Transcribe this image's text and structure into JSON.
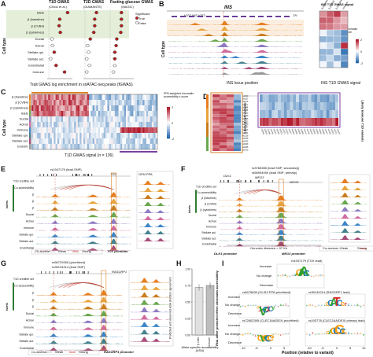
{
  "panels": {
    "A": {
      "label": "A",
      "col1_title": "T1D GWAS",
      "col1_sub": "(Chiou et al.)",
      "col2_title": "T2D GWAS",
      "col2_sub": "(DIAMANTE)",
      "col3_title": "Fasting glucose GWAS",
      "col3_sub": "(MAGIC)",
      "ylabel": "Cell type",
      "xlabel": "Trait GWAS log enrichment in snATAC-seq peaks (fGWAS)",
      "legend_title": "Significant",
      "legend_true": "True",
      "legend_false": "False",
      "rows": [
        "Islets",
        "β (baseline)",
        "β (CVB4)",
        "β (cytokines)",
        "Ductal",
        "Acinar",
        "Stellate qui.",
        "Stellate act.",
        "Endothelial",
        "Immune"
      ],
      "t1d": [
        3.1,
        1.8,
        1.7,
        1.9,
        0.5,
        0.6,
        0.9,
        0.3,
        1.2,
        2.6
      ],
      "t1d_sig": [
        true,
        true,
        true,
        true,
        false,
        false,
        true,
        false,
        true,
        true
      ],
      "t2d": [
        1.3,
        1.1,
        1.1,
        1.0,
        0.6,
        0.3,
        0.4,
        0.2,
        0.5,
        0.2
      ],
      "t2d_sig": [
        true,
        true,
        true,
        true,
        true,
        false,
        false,
        false,
        false,
        false
      ],
      "fg": [
        1.7,
        1.7,
        1.7,
        1.6,
        1.0,
        0.9,
        0.7,
        0.7,
        0.7,
        0.5
      ],
      "fg_sig": [
        true,
        true,
        true,
        true,
        true,
        true,
        true,
        true,
        false,
        false
      ]
    },
    "B": {
      "label": "B",
      "gene_title": "INS",
      "track_genes": "IGF2 INS-IGF2",
      "th": "TH",
      "ylabel": "Cell type",
      "xlabel": "INS locus position",
      "heat_xlabel": "INS T1D GWAS signal",
      "heat_title": "INS T1D GWAS signal",
      "legend_title": "PPA-weighted chromatin accessibility z-score",
      "heat_cols": [
        "β (baseline)",
        "β (CVB4)",
        "β (cytokines)",
        "Immune"
      ],
      "heat_rows": [
        "β",
        "β",
        "β",
        "Ductal",
        "Acinar",
        "Immune",
        "Stellate qui.",
        "Stellate act.",
        "Endothelial"
      ],
      "legend_ticks": [
        "2",
        "0",
        "-2"
      ]
    },
    "C": {
      "label": "C",
      "ylabel": "Cell type",
      "xlabel": "T1D GWAS signal (n = 136)",
      "legend_title": "PPA-weighted chromatin accessibility z-score",
      "rows": [
        "β (baseline)",
        "β (CVB4)",
        "β (cytokines)",
        "Islets",
        "Ductal",
        "Acinar",
        "Immune",
        "Stellate qui.",
        "Stellate act.",
        "Endoth."
      ],
      "legend_ticks": [
        "2",
        "0",
        "-2"
      ]
    },
    "D": {
      "label": "D",
      "left_title": "Likely β-cell variants",
      "right_title": "Likely immune T1D variants",
      "rows": [
        "β",
        "β",
        "β",
        "Immune"
      ]
    },
    "E": {
      "label": "E",
      "snp": "rs1947179 (lead SNP)",
      "gene": "TOX",
      "promoter": "TOX promoter",
      "rows": [
        "T1D credible set",
        "Co-accessibility",
        "β",
        "β",
        "β",
        "Ductal",
        "Acinar",
        "Immune",
        "Stellate qui.",
        "Stellate act.",
        "Endothelial"
      ],
      "islets_label": "Islets",
      "track_label": "GFM PPA",
      "legend_coaccess": "Co-access.",
      "legend_weak": "Weak",
      "legend_strong": "Strong"
    },
    "F": {
      "label": "F",
      "snp1": "rs3783355 (lead SNP; secondary)",
      "snp2": "rs56994090 (lead SNP; primary)",
      "gene1": "DLK1",
      "gene2": "MEG3",
      "gene3": "MEG8",
      "rows": [
        "T1D credible set",
        "Co-accessibility",
        "β (baseline)",
        "β (CVB4)",
        "β (cytokines)",
        "Ductal",
        "Acinar",
        "Immune",
        "Stellate qui.",
        "Stellate act.",
        "Endothelial"
      ],
      "islets_label": "Islets",
      "distance": "Genomic distance = 97 Kb",
      "promoter1": "DLK1 promoter",
      "promoter2": "MEG3 promoter",
      "legend_coaccess": "Co-access.",
      "legend_weak": "Weak",
      "legend_strong": "Strong"
    },
    "G": {
      "label": "G",
      "snp1": "rs56729265 (prioritized)",
      "snp2": "rs35134214 (lead SNP)",
      "gene": "RASGRP1",
      "promoter": "RASGRP1 promoter",
      "rows": [
        "T1D credible set",
        "Co-accessibility",
        "β",
        "β",
        "β",
        "Ductal",
        "Acinar",
        "Immune",
        "Stellate qui.",
        "Stellate act.",
        "Endothelial"
      ],
      "islets_label": "Islets",
      "legend_coaccess": "Co-access.",
      "legend_weak": "Weak",
      "legend_strong": "Strong"
    },
    "H": {
      "label": "H",
      "ylabel": "Predicted and observed ASA direction agreement",
      "xlabel": "Allele-specific accessibility (ASA)",
      "categories": [
        "β cells",
        "Immune"
      ],
      "values": [
        0.72,
        0.75
      ],
      "yticks": [
        "1.00",
        "0.75",
        "0.50",
        "0.25",
        "0.00"
      ]
    },
    "I": {
      "label": "I",
      "ylabel": "Risk allele predicted effect chromatin accessibility",
      "xlabel": "Position (relative to variant)",
      "top_title": "rs1947179 (TOX lead)",
      "ml_title": "rs6476839 (GLIS3 PPA-prioritized)",
      "mr_title": "rs35134214 (RASGRP1 lead)",
      "bl_title": "rs72802395 (CLEC16A/DEXI prioritized)",
      "br_title": "rs193778 (CLEC16A/DEXI primary lead)",
      "increase": "Increase",
      "nochange": "No change",
      "decrease": "Decrease",
      "ticks": [
        "-10",
        "-5",
        "0",
        "5",
        "10"
      ]
    }
  },
  "colors": {
    "islets": "#2e7d32",
    "beta": "#e67e22",
    "sig_true": "#b71c1c",
    "sig_false": "#ffffff",
    "heat_pos": "#b2182b",
    "heat_neg": "#2166ac",
    "purple": "#7b3fa0",
    "orange_box": "#d9822b",
    "green_bg": "#e4eed8"
  }
}
